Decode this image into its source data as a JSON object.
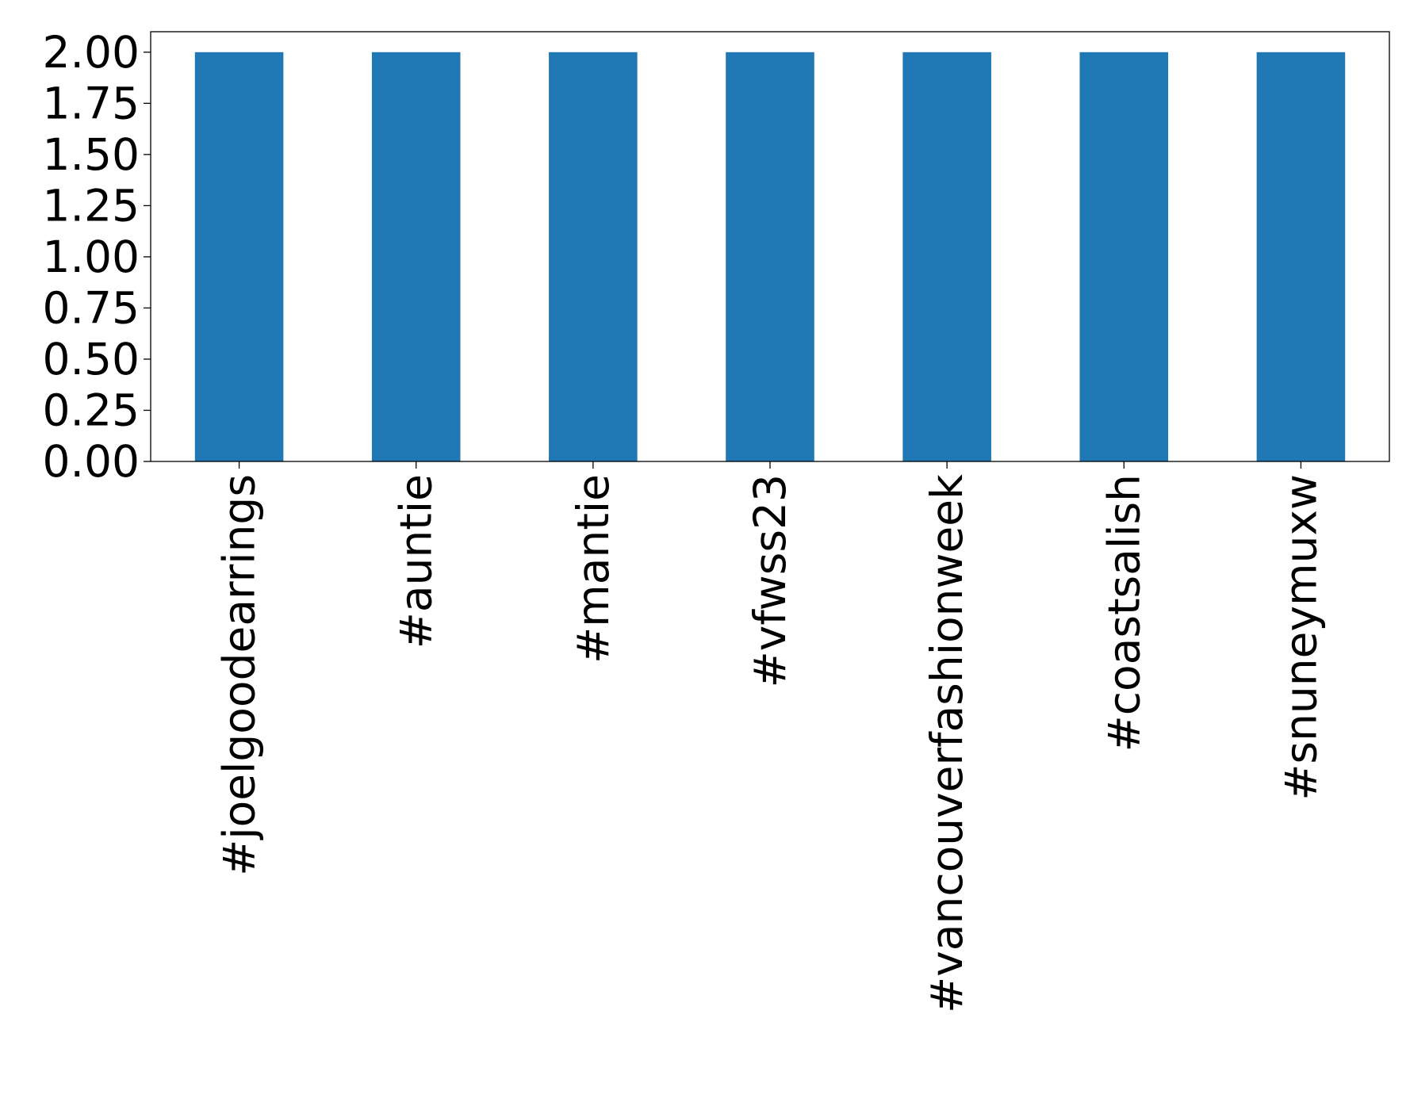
{
  "chart_data": {
    "type": "bar",
    "title": "",
    "xlabel": "",
    "ylabel": "",
    "categories": [
      "#joelgoodearrings",
      "#auntie",
      "#mantie",
      "#vfwss23",
      "#vancouverfashionweek",
      "#coastsalish",
      "#snuneymuxw"
    ],
    "values": [
      2,
      2,
      2,
      2,
      2,
      2,
      2
    ],
    "ylim": [
      0,
      2.1
    ],
    "yticks": [
      0,
      0.25,
      0.5,
      0.75,
      1.0,
      1.25,
      1.5,
      1.75,
      2.0
    ],
    "ytick_labels": [
      "0.00",
      "0.25",
      "0.50",
      "0.75",
      "1.00",
      "1.25",
      "1.50",
      "1.75",
      "2.00"
    ],
    "grid": false,
    "legend": false,
    "colors": {
      "bar": "#1f77b4",
      "axes": "#000000",
      "background": "#ffffff"
    }
  }
}
